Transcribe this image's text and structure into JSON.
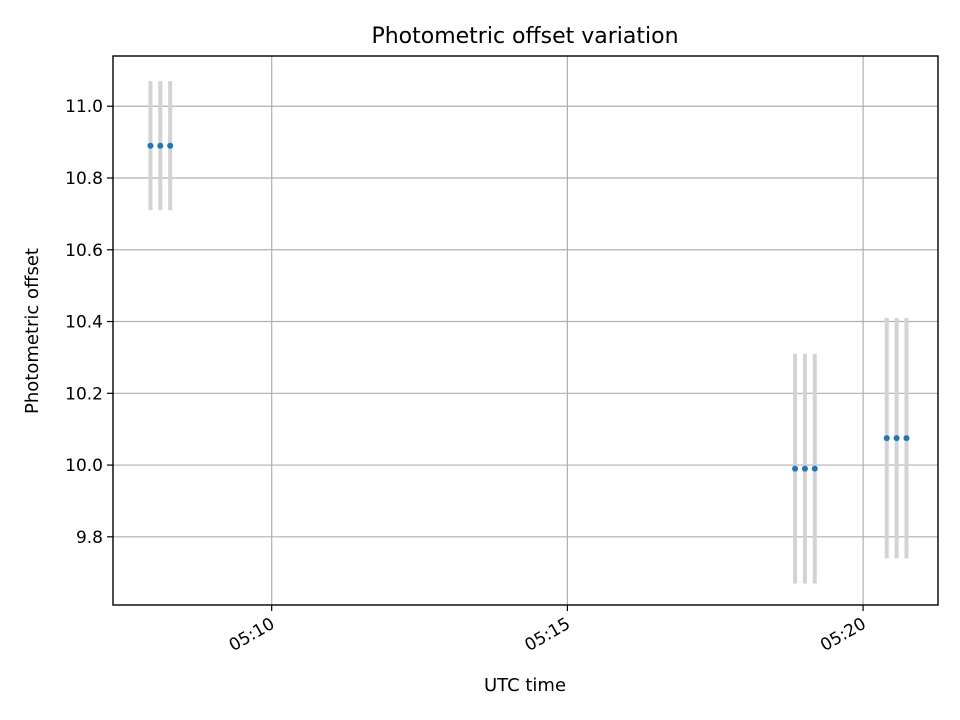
{
  "chart_data": {
    "type": "scatter",
    "title": "Photometric offset variation",
    "xlabel": "UTC time",
    "ylabel": "Photometric offset",
    "xlim": [
      "05:07:19",
      "05:21:16"
    ],
    "ylim": [
      9.61,
      11.14
    ],
    "x_ticks": [
      "05:10",
      "05:15",
      "05:20"
    ],
    "y_ticks": [
      "9.8",
      "10.0",
      "10.2",
      "10.4",
      "10.6",
      "10.8",
      "11.0"
    ],
    "grid": true,
    "colors": {
      "points": "#1f77b4",
      "errorbars": "#d3d3d3"
    },
    "series": [
      {
        "points": [
          {
            "x": "05:07:57",
            "y": 10.89,
            "yerr": 0.18
          },
          {
            "x": "05:08:07",
            "y": 10.89,
            "yerr": 0.18
          },
          {
            "x": "05:08:17",
            "y": 10.89,
            "yerr": 0.18
          },
          {
            "x": "05:18:51",
            "y": 9.99,
            "yerr": 0.32
          },
          {
            "x": "05:19:01",
            "y": 9.99,
            "yerr": 0.32
          },
          {
            "x": "05:19:11",
            "y": 9.99,
            "yerr": 0.32
          },
          {
            "x": "05:20:24",
            "y": 10.075,
            "yerr": 0.335
          },
          {
            "x": "05:20:34",
            "y": 10.075,
            "yerr": 0.335
          },
          {
            "x": "05:20:44",
            "y": 10.075,
            "yerr": 0.335
          }
        ]
      }
    ]
  }
}
